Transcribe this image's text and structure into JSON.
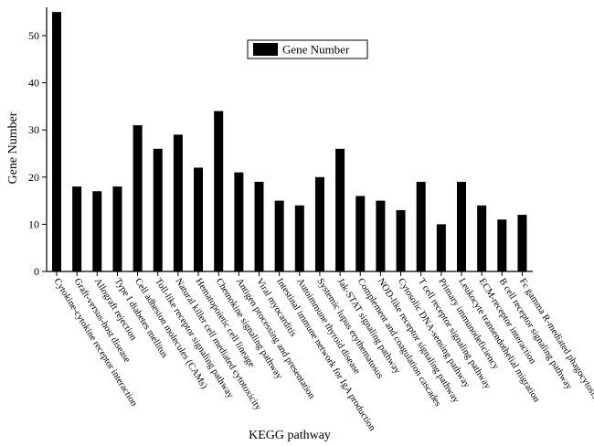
{
  "chart_data": {
    "type": "bar",
    "title": "",
    "xlabel": "KEGG pathway",
    "ylabel": "Gene Number",
    "ylim": [
      0,
      56
    ],
    "yticks": [
      0,
      10,
      20,
      30,
      40,
      50
    ],
    "legend": {
      "position": "top-center",
      "entries": [
        "Gene Number"
      ]
    },
    "grid": false,
    "series": [
      {
        "name": "Gene Number",
        "color": "#000000",
        "values": [
          55,
          18,
          17,
          18,
          31,
          26,
          29,
          22,
          34,
          21,
          19,
          15,
          14,
          20,
          26,
          16,
          15,
          13,
          19,
          10,
          19,
          14,
          11,
          12
        ]
      }
    ],
    "categories": [
      "Cytokine-cytokine receptor interaction",
      "Graft-versus-host disease",
      "Allograft rejection",
      "Type I diabetes mellitus",
      "Cell adhesion molecules (CAMs)",
      "Toll-like receptor signaling pathway",
      "Natural killer cell mediated cytotoxicity",
      "Hematopoietic cell lineage",
      "Chemokine signaling pathway",
      "Antigen processing and presentation",
      "Viral myocarditis",
      "Intestinal immune network for IgA production",
      "Autoimmune thyroid disease",
      "Systemic lupus erythematosus",
      "Jak-STAT signaling pathway",
      "Complement and coagulation cascades",
      "NOD-like receptor signaling pathway",
      "Cytosolic DNA-sensing pathway",
      "T cell receptor signaling pathway",
      "Primary immunodeficiency",
      "Leukocyte transendothelial migration",
      "ECM-receptor interaction",
      "B cell receptor signaling pathway",
      "Fc gamma R-mediated phagocytosis"
    ]
  }
}
